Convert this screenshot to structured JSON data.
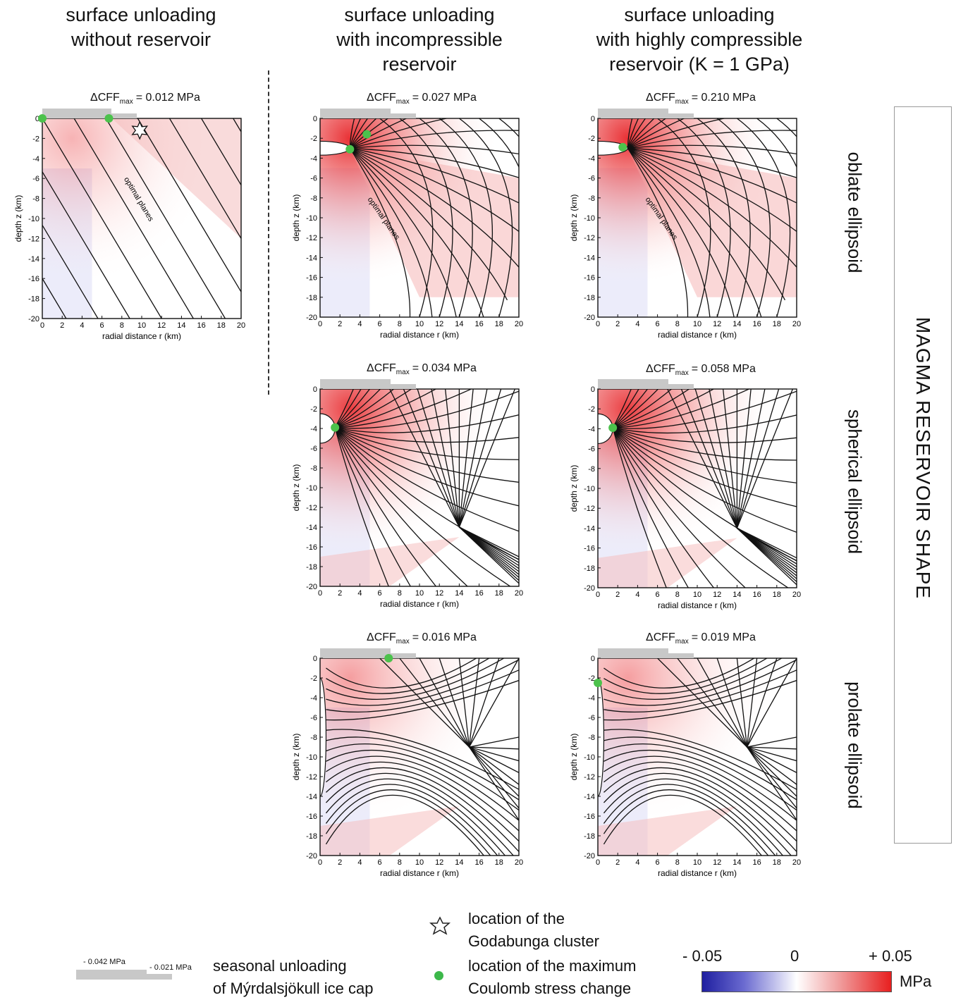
{
  "column_titles": [
    "surface unloading\nwithout reservoir",
    "surface unloading\nwith incompressible\nreservoir",
    "surface unloading\nwith highly compressible\nreservoir (K = 1 GPa)"
  ],
  "shape_axis_title": "MAGMA RESERVOIR SHAPE",
  "row_labels": [
    "oblate ellipsoid",
    "spherical ellipsoid",
    "prolate ellipsoid"
  ],
  "cff_prefix": "ΔCFF",
  "cff_sub": "max",
  "panels": [
    {
      "id": "p1",
      "cff": "= 0.012 MPa",
      "reservoir": "none",
      "annotation": "optimal planes"
    },
    {
      "id": "p2",
      "cff": "= 0.027 MPa",
      "reservoir": "oblate",
      "annotation": "optimal planes"
    },
    {
      "id": "p3",
      "cff": "= 0.210 MPa",
      "reservoir": "oblate",
      "annotation": "optimal planes"
    },
    {
      "id": "p4",
      "cff": "= 0.034 MPa",
      "reservoir": "spherical",
      "annotation": ""
    },
    {
      "id": "p5",
      "cff": "= 0.058 MPa",
      "reservoir": "spherical",
      "annotation": ""
    },
    {
      "id": "p6",
      "cff": "= 0.016 MPa",
      "reservoir": "prolate",
      "annotation": ""
    },
    {
      "id": "p7",
      "cff": "= 0.019 MPa",
      "reservoir": "prolate",
      "annotation": ""
    }
  ],
  "axes": {
    "x_label": "radial distance r (km)",
    "y_label": "depth z (km)",
    "x_ticks": [
      "0",
      "2",
      "4",
      "6",
      "8",
      "10",
      "12",
      "14",
      "16",
      "18",
      "20"
    ],
    "y_ticks": [
      "0",
      "-2",
      "-4",
      "-6",
      "-8",
      "-10",
      "-12",
      "-14",
      "-16",
      "-18",
      "-20"
    ]
  },
  "legend": {
    "star_text": "location of the\nGodabunga cluster",
    "dot_text": "location of the maximum\nCoulomb stress change",
    "ice_text": "seasonal unloading\nof Mýrdalsjökull ice cap",
    "ice_label_1": "- 0.042 MPa",
    "ice_label_2": "- 0.021 MPa",
    "cbar_min": "- 0.05",
    "cbar_mid": "0",
    "cbar_max": "+ 0.05",
    "cbar_unit": "MPa"
  },
  "colors": {
    "positive": "#e8262a",
    "negative": "#2b2aa0",
    "ice": "#c8c8c8",
    "max_dot": "#4cc24c"
  }
}
